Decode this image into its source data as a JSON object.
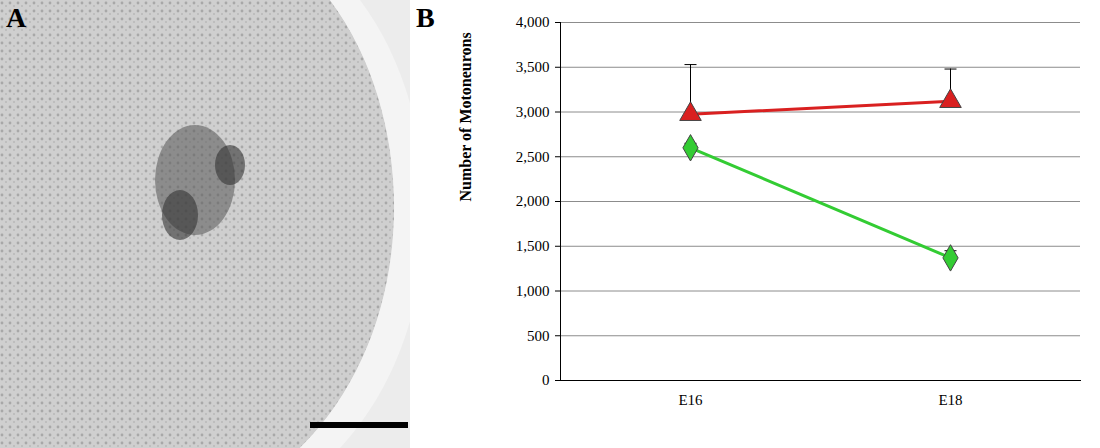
{
  "panel_labels": [
    "A",
    "B"
  ],
  "chart_data": {
    "type": "line",
    "y_label": "Number of Motoneurons",
    "categories": [
      "E16",
      "E18"
    ],
    "series": [
      {
        "color": "#d92020",
        "marker": "triangle",
        "line_style": "solid",
        "values": [
          2975,
          3120
        ],
        "errors": [
          555,
          360
        ]
      },
      {
        "color": "#33cc33",
        "marker": "diamond",
        "line_style": "solid",
        "values": [
          2600,
          1370
        ],
        "errors": [
          50,
          80
        ]
      }
    ],
    "ylim": [
      0,
      4000
    ],
    "yticks": [
      0,
      500,
      1000,
      1500,
      2000,
      2500,
      3000,
      3500,
      4000
    ],
    "grid": true
  }
}
